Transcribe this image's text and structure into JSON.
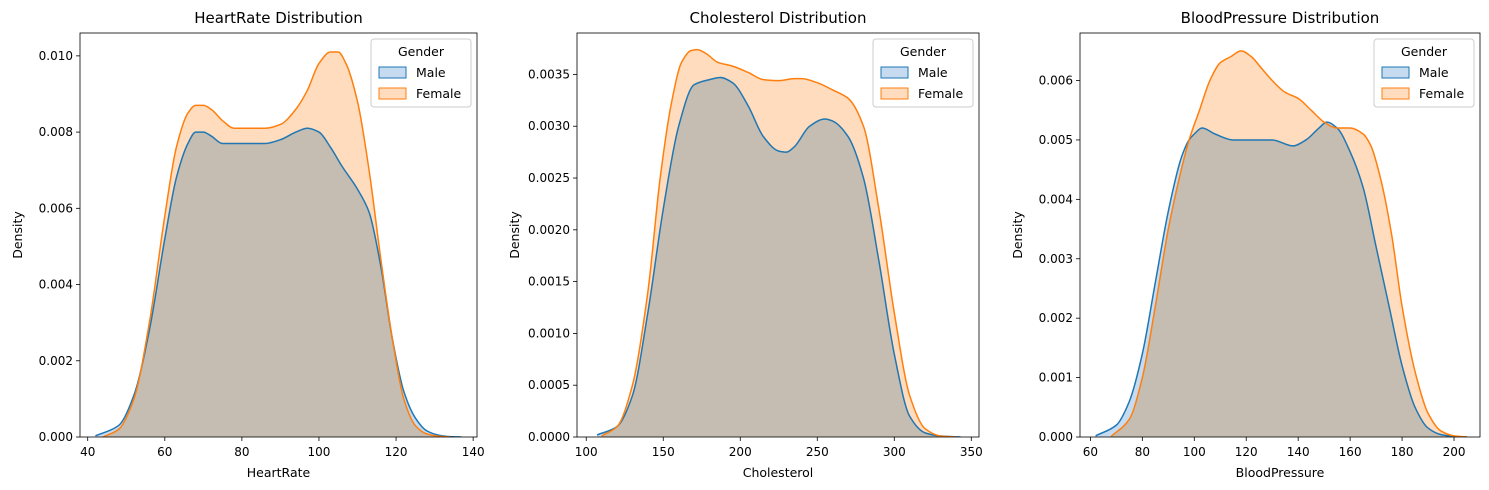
{
  "legend": {
    "title": "Gender",
    "labels": [
      "Male",
      "Female"
    ]
  },
  "colors": {
    "male_line": "#1f77b4",
    "male_fill": "#c6dbef",
    "female_line": "#ff7f0e",
    "female_fill": "#fedcbd",
    "overlap_fill": "#c4c3bd"
  },
  "chart_data": [
    {
      "type": "area",
      "title": "HeartRate Distribution",
      "xlabel": "HeartRate",
      "ylabel": "Density",
      "xlim": [
        38,
        141
      ],
      "ylim": [
        0,
        0.0106
      ],
      "xticks": [
        40,
        60,
        80,
        100,
        120,
        140
      ],
      "yticks": [
        "0.000",
        "0.002",
        "0.004",
        "0.006",
        "0.008",
        "0.010"
      ],
      "ytick_values": [
        0,
        0.002,
        0.004,
        0.006,
        0.008,
        0.01
      ],
      "series": [
        {
          "name": "Male",
          "x": [
            42,
            48,
            52,
            56,
            60,
            63,
            66,
            68,
            70,
            72,
            75,
            78,
            82,
            86,
            90,
            94,
            97,
            100,
            103,
            106,
            110,
            113,
            116,
            119,
            122,
            125,
            128,
            131,
            134,
            137
          ],
          "y": [
            3e-05,
            0.0003,
            0.0011,
            0.0028,
            0.0052,
            0.0068,
            0.0077,
            0.008,
            0.008,
            0.0079,
            0.0077,
            0.0077,
            0.0077,
            0.0077,
            0.0078,
            0.008,
            0.0081,
            0.008,
            0.0076,
            0.0071,
            0.0065,
            0.0059,
            0.0045,
            0.0026,
            0.0012,
            0.0005,
            0.00016,
            5e-05,
            1e-05,
            0
          ]
        },
        {
          "name": "Female",
          "x": [
            44,
            48,
            52,
            56,
            60,
            63,
            66,
            68,
            70,
            72,
            75,
            78,
            82,
            86,
            90,
            94,
            97,
            100,
            103,
            105,
            107,
            110,
            113,
            116,
            119,
            122,
            125,
            128,
            131,
            134
          ],
          "y": [
            0,
            0.0002,
            0.001,
            0.003,
            0.0058,
            0.0076,
            0.0085,
            0.0087,
            0.0087,
            0.0086,
            0.0083,
            0.0081,
            0.0081,
            0.0081,
            0.0082,
            0.0086,
            0.0091,
            0.0098,
            0.0101,
            0.0101,
            0.0098,
            0.0088,
            0.007,
            0.0047,
            0.0026,
            0.001,
            0.0003,
            8e-05,
            2e-05,
            0
          ]
        }
      ]
    },
    {
      "type": "area",
      "title": "Cholesterol Distribution",
      "xlabel": "Cholesterol",
      "ylabel": "Density",
      "xlim": [
        94,
        355
      ],
      "ylim": [
        0,
        0.0039
      ],
      "xticks": [
        100,
        150,
        200,
        250,
        300,
        350
      ],
      "yticks": [
        "0.0000",
        "0.0005",
        "0.0010",
        "0.0015",
        "0.0020",
        "0.0025",
        "0.0030",
        "0.0035"
      ],
      "ytick_values": [
        0,
        0.0005,
        0.001,
        0.0015,
        0.002,
        0.0025,
        0.003,
        0.0035
      ],
      "series": [
        {
          "name": "Male",
          "x": [
            107,
            120,
            130,
            140,
            150,
            160,
            170,
            180,
            187,
            195,
            205,
            215,
            225,
            230,
            235,
            245,
            255,
            260,
            270,
            280,
            290,
            300,
            310,
            320,
            330,
            343
          ],
          "y": [
            2e-05,
            0.0001,
            0.0004,
            0.0012,
            0.0022,
            0.003,
            0.0034,
            0.00345,
            0.00347,
            0.00342,
            0.0032,
            0.0029,
            0.00276,
            0.00275,
            0.0028,
            0.003,
            0.00307,
            0.00305,
            0.0029,
            0.0025,
            0.0017,
            0.0008,
            0.0002,
            4e-05,
            1e-05,
            0
          ]
        },
        {
          "name": "Female",
          "x": [
            110,
            120,
            130,
            140,
            148,
            155,
            162,
            168,
            172,
            178,
            185,
            195,
            205,
            215,
            225,
            235,
            240,
            250,
            260,
            270,
            280,
            290,
            300,
            310,
            320,
            330,
            340
          ],
          "y": [
            1e-05,
            0.0001,
            0.0005,
            0.0014,
            0.0025,
            0.0032,
            0.00362,
            0.00373,
            0.00374,
            0.0037,
            0.00362,
            0.00358,
            0.00352,
            0.00345,
            0.00344,
            0.00346,
            0.00346,
            0.00342,
            0.00335,
            0.00327,
            0.003,
            0.0022,
            0.0012,
            0.0004,
            8e-05,
            1e-05,
            0
          ]
        }
      ]
    },
    {
      "type": "area",
      "title": "BloodPressure Distribution",
      "xlabel": "BloodPressure",
      "ylabel": "Density",
      "xlim": [
        56,
        210
      ],
      "ylim": [
        0,
        0.0068
      ],
      "xticks": [
        60,
        80,
        100,
        120,
        140,
        160,
        180,
        200
      ],
      "yticks": [
        "0.000",
        "0.001",
        "0.002",
        "0.003",
        "0.004",
        "0.005",
        "0.006"
      ],
      "ytick_values": [
        0,
        0.001,
        0.002,
        0.003,
        0.004,
        0.005,
        0.006
      ],
      "series": [
        {
          "name": "Male",
          "x": [
            62,
            70,
            75,
            80,
            85,
            90,
            95,
            98,
            100,
            103,
            108,
            115,
            122,
            130,
            138,
            143,
            148,
            151,
            155,
            160,
            165,
            170,
            175,
            180,
            185,
            190,
            195,
            200,
            205
          ],
          "y": [
            2e-05,
            0.0002,
            0.0006,
            0.0014,
            0.0026,
            0.0038,
            0.0047,
            0.005,
            0.0051,
            0.0052,
            0.0051,
            0.005,
            0.005,
            0.005,
            0.0049,
            0.005,
            0.0052,
            0.0053,
            0.0052,
            0.0048,
            0.0042,
            0.0032,
            0.0022,
            0.0012,
            0.0005,
            0.00015,
            4e-05,
            1e-05,
            0
          ]
        },
        {
          "name": "Female",
          "x": [
            68,
            75,
            80,
            85,
            90,
            95,
            98,
            102,
            106,
            110,
            114,
            118,
            122,
            126,
            130,
            135,
            140,
            145,
            150,
            155,
            160,
            165,
            168,
            172,
            176,
            180,
            185,
            190,
            195,
            200,
            205
          ],
          "y": [
            1e-05,
            0.0003,
            0.001,
            0.0022,
            0.0035,
            0.0045,
            0.005,
            0.0055,
            0.006,
            0.0063,
            0.0064,
            0.0065,
            0.0064,
            0.0062,
            0.006,
            0.0058,
            0.0057,
            0.0055,
            0.0053,
            0.0052,
            0.0052,
            0.0051,
            0.0049,
            0.0043,
            0.0034,
            0.0022,
            0.0011,
            0.0004,
            0.0001,
            2e-05,
            0
          ]
        }
      ]
    }
  ]
}
